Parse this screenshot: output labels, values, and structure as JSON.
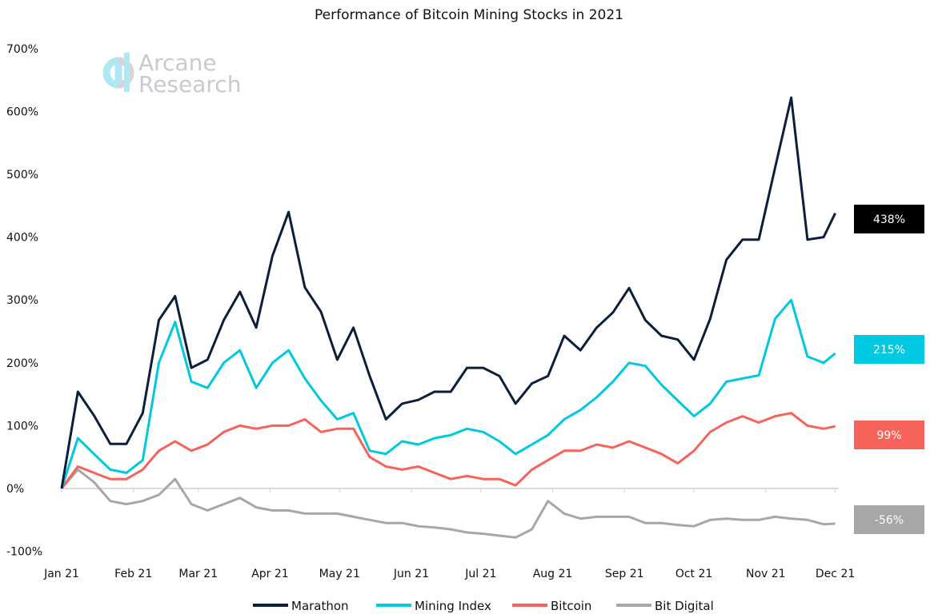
{
  "chart_data": {
    "type": "line",
    "title": "Performance of Bitcoin Mining Stocks in 2021",
    "xlabel": "",
    "ylabel": "",
    "ylim": [
      -100,
      700
    ],
    "yticks": [
      "700%",
      "600%",
      "500%",
      "400%",
      "300%",
      "200%",
      "100%",
      "0%",
      "-100%"
    ],
    "ytick_values": [
      700,
      600,
      500,
      400,
      300,
      200,
      100,
      0,
      -100
    ],
    "xticks": [
      "Jan 21",
      "Feb 21",
      "Mar 21",
      "Apr 21",
      "May 21",
      "Jun 21",
      "Jul 21",
      "Aug 21",
      "Sep 21",
      "Oct 21",
      "Nov 21",
      "Dec 21"
    ],
    "xtick_dates": [
      "2021-01-01",
      "2021-02-01",
      "2021-03-01",
      "2021-04-01",
      "2021-05-01",
      "2021-06-01",
      "2021-07-01",
      "2021-08-01",
      "2021-09-01",
      "2021-10-01",
      "2021-11-01",
      "2021-12-01"
    ],
    "grid": false,
    "legend": "bottom",
    "watermark": "Arcane Research",
    "x": [
      "2021-01-01",
      "2021-01-08",
      "2021-01-15",
      "2021-01-22",
      "2021-01-29",
      "2021-02-05",
      "2021-02-12",
      "2021-02-19",
      "2021-02-26",
      "2021-03-05",
      "2021-03-12",
      "2021-03-19",
      "2021-03-26",
      "2021-04-02",
      "2021-04-09",
      "2021-04-16",
      "2021-04-23",
      "2021-04-30",
      "2021-05-07",
      "2021-05-14",
      "2021-05-21",
      "2021-05-28",
      "2021-06-04",
      "2021-06-11",
      "2021-06-18",
      "2021-06-25",
      "2021-07-02",
      "2021-07-09",
      "2021-07-16",
      "2021-07-23",
      "2021-07-30",
      "2021-08-06",
      "2021-08-13",
      "2021-08-20",
      "2021-08-27",
      "2021-09-03",
      "2021-09-10",
      "2021-09-17",
      "2021-09-24",
      "2021-10-01",
      "2021-10-08",
      "2021-10-15",
      "2021-10-22",
      "2021-10-29",
      "2021-11-05",
      "2021-11-12",
      "2021-11-19",
      "2021-11-26",
      "2021-12-01"
    ],
    "series": [
      {
        "name": "Marathon",
        "color": "#0b1f3a",
        "end_label": "438%",
        "values": [
          0,
          154,
          116,
          71,
          71,
          120,
          268,
          306,
          192,
          205,
          268,
          313,
          256,
          370,
          440,
          320,
          281,
          205,
          256,
          179,
          110,
          135,
          141,
          154,
          154,
          192,
          192,
          179,
          135,
          167,
          179,
          243,
          220,
          256,
          280,
          319,
          268,
          243,
          237,
          205,
          270,
          364,
          396,
          396,
          510,
          622,
          396,
          400,
          438
        ]
      },
      {
        "name": "Mining Index",
        "color": "#00c8e0",
        "end_label": "215%",
        "values": [
          0,
          80,
          55,
          30,
          25,
          45,
          200,
          265,
          170,
          160,
          200,
          220,
          160,
          200,
          220,
          175,
          140,
          110,
          120,
          60,
          55,
          75,
          70,
          80,
          85,
          95,
          90,
          75,
          55,
          70,
          85,
          110,
          125,
          145,
          170,
          200,
          195,
          165,
          140,
          115,
          135,
          170,
          175,
          180,
          270,
          300,
          210,
          200,
          215
        ]
      },
      {
        "name": "Bitcoin",
        "color": "#f7625a",
        "end_label": "99%",
        "values": [
          0,
          35,
          25,
          15,
          15,
          30,
          60,
          75,
          60,
          70,
          90,
          100,
          95,
          100,
          100,
          110,
          90,
          95,
          95,
          50,
          35,
          30,
          35,
          25,
          15,
          20,
          15,
          15,
          5,
          30,
          45,
          60,
          60,
          70,
          65,
          75,
          65,
          55,
          40,
          60,
          90,
          105,
          115,
          105,
          115,
          120,
          100,
          95,
          99
        ]
      },
      {
        "name": "Bit Digital",
        "color": "#a7a7a9",
        "end_label": "-56%",
        "values": [
          0,
          30,
          10,
          -20,
          -25,
          -20,
          -10,
          15,
          -25,
          -35,
          -25,
          -15,
          -30,
          -35,
          -35,
          -40,
          -40,
          -40,
          -45,
          -50,
          -55,
          -55,
          -60,
          -62,
          -65,
          -70,
          -72,
          -75,
          -78,
          -65,
          -20,
          -40,
          -48,
          -45,
          -45,
          -45,
          -55,
          -55,
          -58,
          -60,
          -50,
          -48,
          -50,
          -50,
          -45,
          -48,
          -50,
          -57,
          -56
        ]
      }
    ]
  }
}
